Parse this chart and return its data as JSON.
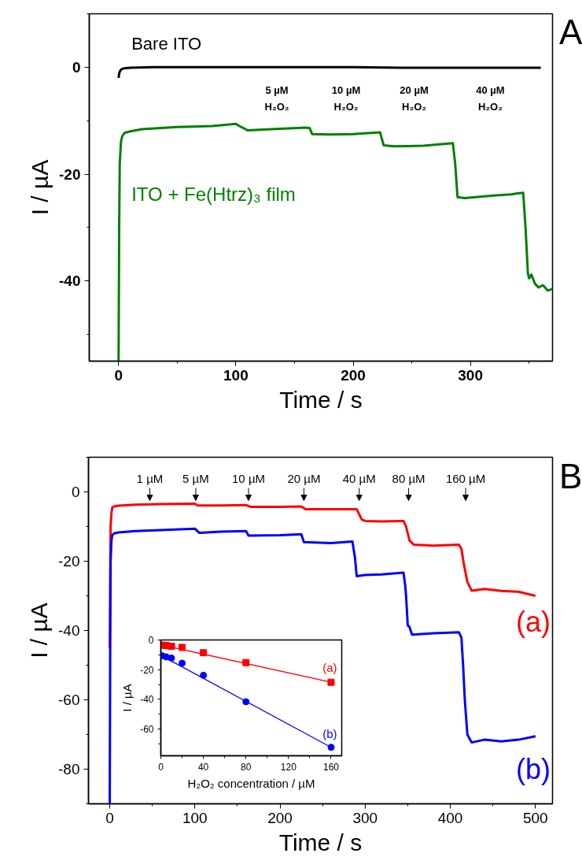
{
  "chart_data": [
    {
      "type": "line",
      "xlabel": "Time / s",
      "ylabel": "I / µA",
      "xlim": [
        -25,
        370
      ],
      "ylim": [
        -55,
        10
      ],
      "xticks": [
        0,
        100,
        200,
        300
      ],
      "yticks": [
        0,
        -20,
        -40
      ],
      "series": [
        {
          "name": "Bare ITO",
          "color": "#000000",
          "x": [
            0,
            0.5,
            1,
            2,
            3,
            5,
            10,
            30,
            60,
            100,
            150,
            200,
            250,
            300,
            340,
            360
          ],
          "values": [
            -2,
            -1.2,
            -0.8,
            -0.5,
            -0.3,
            -0.2,
            -0.1,
            0,
            0,
            0,
            0,
            0,
            -0.1,
            -0.1,
            -0.1,
            -0.1
          ]
        },
        {
          "name": "ITO + Fe(Htrz)₃ film",
          "color": "#008000",
          "x": [
            0,
            0.5,
            1,
            2,
            3,
            5,
            10,
            20,
            50,
            80,
            100,
            103,
            110,
            130,
            160,
            163,
            165,
            180,
            200,
            223,
            226,
            235,
            260,
            285,
            287,
            289,
            295,
            320,
            335,
            340,
            345,
            347,
            349,
            350,
            352,
            355,
            358,
            362,
            366,
            370
          ],
          "values": [
            -55,
            -30,
            -18,
            -14,
            -13,
            -12.3,
            -12,
            -11.6,
            -11.2,
            -11,
            -10.6,
            -11,
            -11.8,
            -11.6,
            -11.3,
            -11.4,
            -12.5,
            -12.6,
            -12.5,
            -12.2,
            -14.6,
            -14.8,
            -14.7,
            -14.2,
            -18,
            -24.3,
            -24.5,
            -24,
            -23.8,
            -23.6,
            -23.5,
            -30,
            -38.5,
            -39.5,
            -38.8,
            -40.5,
            -41.2,
            -40.8,
            -41.8,
            -41.5
          ]
        }
      ],
      "annotations": [
        "A",
        "5 µM H₂O₂",
        "10 µM H₂O₂",
        "20 µM H₂O₂",
        "40 µM H₂O₂"
      ]
    },
    {
      "type": "line",
      "xlabel": "Time / s",
      "ylabel": "I / µA",
      "xlim": [
        -25,
        520
      ],
      "ylim": [
        -90,
        10
      ],
      "xticks": [
        0,
        100,
        200,
        300,
        400,
        500
      ],
      "yticks": [
        0,
        -20,
        -40,
        -60,
        -80
      ],
      "series": [
        {
          "name": "(a)",
          "color": "#ff0000",
          "x": [
            0,
            0.5,
            1,
            2,
            3,
            5,
            10,
            30,
            60,
            100,
            103,
            130,
            160,
            165,
            200,
            225,
            230,
            260,
            290,
            293,
            296,
            300,
            320,
            345,
            348,
            352,
            357,
            380,
            410,
            413,
            416,
            420,
            425,
            440,
            460,
            480,
            500
          ],
          "values": [
            -45,
            -25,
            -10,
            -6,
            -4.5,
            -4.2,
            -4,
            -3.7,
            -3.5,
            -3.4,
            -3.9,
            -3.9,
            -3.8,
            -4.3,
            -4.3,
            -4.2,
            -5,
            -5,
            -5,
            -6.5,
            -8,
            -8.4,
            -8.5,
            -8.4,
            -10,
            -14,
            -15.2,
            -15.5,
            -15.2,
            -16.5,
            -21,
            -26,
            -28.5,
            -28,
            -28.6,
            -28.8,
            -30
          ]
        },
        {
          "name": "(b)",
          "color": "#0000ff",
          "x": [
            0,
            0.5,
            1,
            2,
            3,
            5,
            10,
            30,
            60,
            100,
            105,
            130,
            160,
            163,
            200,
            225,
            228,
            260,
            285,
            288,
            290,
            300,
            320,
            345,
            347,
            348,
            350,
            352,
            355,
            380,
            410,
            413,
            415,
            417,
            420,
            425,
            440,
            460,
            480,
            500
          ],
          "values": [
            -90,
            -45,
            -20,
            -14,
            -12.5,
            -12,
            -11.7,
            -11.3,
            -11,
            -10.6,
            -11.8,
            -11.5,
            -11.3,
            -12.6,
            -12.5,
            -12.2,
            -14.5,
            -14.8,
            -14.3,
            -19,
            -24.3,
            -24,
            -23.8,
            -23.3,
            -27,
            -30,
            -38.5,
            -39,
            -41.2,
            -40.8,
            -40.5,
            -42,
            -50,
            -60,
            -70,
            -72.3,
            -71.5,
            -72,
            -71.5,
            -70.5
          ]
        }
      ],
      "annotations": [
        "B",
        "1 µM",
        "5 µM",
        "10 µM",
        "20 µM",
        "40 µM",
        "80 µM",
        "160 µM"
      ]
    },
    {
      "type": "scatter",
      "xlabel": "H₂O₂ concentration / µM",
      "ylabel": "I / µA",
      "xlim": [
        0,
        170
      ],
      "ylim": [
        -78,
        0
      ],
      "xticks": [
        0,
        40,
        80,
        120,
        160
      ],
      "yticks": [
        0,
        -20,
        -40,
        -60
      ],
      "series": [
        {
          "name": "(a)",
          "color": "#ff0000",
          "marker": "square",
          "x": [
            1,
            5,
            10,
            20,
            40,
            80,
            160
          ],
          "values": [
            -3.5,
            -3.7,
            -4.2,
            -5,
            -8.6,
            -15.2,
            -28.5
          ]
        },
        {
          "name": "(b)",
          "color": "#0000ff",
          "marker": "circle",
          "x": [
            1,
            5,
            10,
            20,
            40,
            80,
            160
          ],
          "values": [
            -10.6,
            -11.4,
            -12.2,
            -15.6,
            -23.8,
            -41.6,
            -72.3
          ]
        },
        {
          "type": "line",
          "color": "#ff0000",
          "x": [
            0,
            160
          ],
          "values": [
            -3.3,
            -28.4
          ]
        },
        {
          "type": "line",
          "color": "#0000ff",
          "x": [
            0,
            160
          ],
          "values": [
            -10.4,
            -72.3
          ]
        }
      ]
    }
  ]
}
